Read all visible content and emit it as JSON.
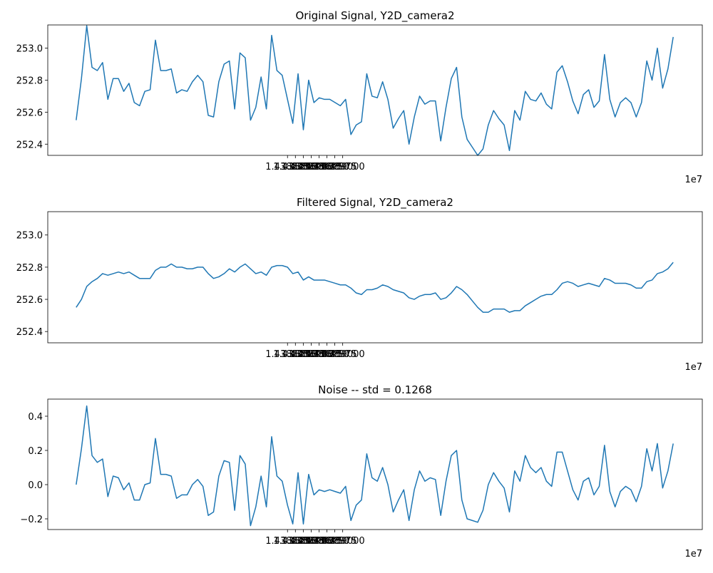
{
  "chart_data": [
    {
      "type": "line",
      "title": "Original Signal, Y2D_camera2",
      "x_offset_label": "1e7",
      "xlim": [
        14388065,
        14390140
      ],
      "xticks": [
        {
          "value": 14388825,
          "label": "1.438825"
        },
        {
          "value": 14388850,
          "label": "1.438850"
        },
        {
          "value": 14388875,
          "label": "1.438875"
        },
        {
          "value": 14388900,
          "label": "1.438900"
        },
        {
          "value": 14388925,
          "label": "1.438925"
        },
        {
          "value": 14388950,
          "label": "1.438950"
        },
        {
          "value": 14388975,
          "label": "1.438975"
        },
        {
          "value": 14389000,
          "label": "1.439000"
        }
      ],
      "ylim": [
        252.33,
        253.145
      ],
      "yticks": [
        252.4,
        252.6,
        252.8,
        {
          "value": 253,
          "label": "253.0"
        }
      ],
      "x": [
        14388155,
        14388171.75,
        14388188.5,
        14388205.25,
        14388222,
        14388238.75,
        14388255.5,
        14388272.25,
        14388289,
        14388305.75,
        14388322.5,
        14388339.25,
        14388356,
        14388372.75,
        14388389.5,
        14388406.25,
        14388423,
        14388439.75,
        14388456.5,
        14388473.25,
        14388490,
        14388506.75,
        14388523.5,
        14388540.25,
        14388557,
        14388573.75,
        14388590.5,
        14388607.25,
        14388624,
        14388640.75,
        14388657.5,
        14388674.25,
        14388691,
        14388707.75,
        14388724.5,
        14388741.25,
        14388758,
        14388774.75,
        14388791.5,
        14388808.25,
        14388825,
        14388841.75,
        14388858.5,
        14388875.25,
        14388892,
        14388908.75,
        14388925.5,
        14388942.25,
        14388959,
        14388975.75,
        14388992.5,
        14389009.25,
        14389026,
        14389042.75,
        14389059.5,
        14389076.25,
        14389093,
        14389109.75,
        14389126.5,
        14389143.25,
        14389160,
        14389176.75,
        14389193.5,
        14389210.25,
        14389227,
        14389243.75,
        14389260.5,
        14389277.25,
        14389294,
        14389310.75,
        14389327.5,
        14389344.25,
        14389361,
        14389377.75,
        14389394.5,
        14389411.25,
        14389428,
        14389444.75,
        14389461.5,
        14389478.25,
        14389495,
        14389511.75,
        14389528.5,
        14389545.25,
        14389562,
        14389578.75,
        14389595.5,
        14389612.25,
        14389629,
        14389645.75,
        14389662.5,
        14389679.25,
        14389696,
        14389712.75,
        14389729.5,
        14389746.25,
        14389763,
        14389779.75,
        14389796.5,
        14389813.25,
        14389830,
        14389846.75,
        14389863.5,
        14389880.25,
        14389897,
        14389913.75,
        14389930.5,
        14389947.25,
        14389964,
        14389980.75,
        14389997.5,
        14390014.25,
        14390031,
        14390047.75
      ],
      "series": [
        {
          "color": "#1f77b4",
          "values": [
            252.55,
            252.81,
            253.14,
            252.88,
            252.86,
            252.91,
            252.68,
            252.81,
            252.81,
            252.73,
            252.78,
            252.66,
            252.64,
            252.73,
            252.74,
            253.05,
            252.86,
            252.86,
            252.87,
            252.72,
            252.74,
            252.73,
            252.79,
            252.83,
            252.79,
            252.58,
            252.57,
            252.79,
            252.9,
            252.92,
            252.62,
            252.97,
            252.94,
            252.55,
            252.63,
            252.82,
            252.62,
            253.08,
            252.86,
            252.83,
            252.68,
            252.53,
            252.84,
            252.49,
            252.8,
            252.66,
            252.69,
            252.68,
            252.68,
            252.66,
            252.64,
            252.68,
            252.46,
            252.52,
            252.54,
            252.84,
            252.7,
            252.69,
            252.79,
            252.68,
            252.5,
            252.56,
            252.61,
            252.4,
            252.57,
            252.7,
            252.65,
            252.67,
            252.67,
            252.42,
            252.63,
            252.81,
            252.88,
            252.57,
            252.43,
            252.38,
            252.33,
            252.37,
            252.52,
            252.61,
            252.56,
            252.52,
            252.36,
            252.61,
            252.55,
            252.73,
            252.68,
            252.67,
            252.72,
            252.65,
            252.62,
            252.85,
            252.89,
            252.79,
            252.67,
            252.59,
            252.71,
            252.74,
            252.63,
            252.67,
            252.96,
            252.68,
            252.57,
            252.66,
            252.69,
            252.66,
            252.57,
            252.66,
            252.92,
            252.8,
            253.0,
            252.75,
            252.87,
            253.07
          ]
        }
      ]
    },
    {
      "type": "line",
      "title": "Filtered Signal, Y2D_camera2",
      "x_offset_label": "1e7",
      "xlim": [
        14388065,
        14390140
      ],
      "xticks": [
        {
          "value": 14388825,
          "label": "1.438825"
        },
        {
          "value": 14388850,
          "label": "1.438850"
        },
        {
          "value": 14388875,
          "label": "1.438875"
        },
        {
          "value": 14388900,
          "label": "1.438900"
        },
        {
          "value": 14388925,
          "label": "1.438925"
        },
        {
          "value": 14388950,
          "label": "1.438950"
        },
        {
          "value": 14388975,
          "label": "1.438975"
        },
        {
          "value": 14389000,
          "label": "1.439000"
        }
      ],
      "ylim": [
        252.33,
        253.145
      ],
      "yticks": [
        252.4,
        252.6,
        252.8,
        {
          "value": 253,
          "label": "253.0"
        }
      ],
      "x": [
        14388155,
        14388171.75,
        14388188.5,
        14388205.25,
        14388222,
        14388238.75,
        14388255.5,
        14388272.25,
        14388289,
        14388305.75,
        14388322.5,
        14388339.25,
        14388356,
        14388372.75,
        14388389.5,
        14388406.25,
        14388423,
        14388439.75,
        14388456.5,
        14388473.25,
        14388490,
        14388506.75,
        14388523.5,
        14388540.25,
        14388557,
        14388573.75,
        14388590.5,
        14388607.25,
        14388624,
        14388640.75,
        14388657.5,
        14388674.25,
        14388691,
        14388707.75,
        14388724.5,
        14388741.25,
        14388758,
        14388774.75,
        14388791.5,
        14388808.25,
        14388825,
        14388841.75,
        14388858.5,
        14388875.25,
        14388892,
        14388908.75,
        14388925.5,
        14388942.25,
        14388959,
        14388975.75,
        14388992.5,
        14389009.25,
        14389026,
        14389042.75,
        14389059.5,
        14389076.25,
        14389093,
        14389109.75,
        14389126.5,
        14389143.25,
        14389160,
        14389176.75,
        14389193.5,
        14389210.25,
        14389227,
        14389243.75,
        14389260.5,
        14389277.25,
        14389294,
        14389310.75,
        14389327.5,
        14389344.25,
        14389361,
        14389377.75,
        14389394.5,
        14389411.25,
        14389428,
        14389444.75,
        14389461.5,
        14389478.25,
        14389495,
        14389511.75,
        14389528.5,
        14389545.25,
        14389562,
        14389578.75,
        14389595.5,
        14389612.25,
        14389629,
        14389645.75,
        14389662.5,
        14389679.25,
        14389696,
        14389712.75,
        14389729.5,
        14389746.25,
        14389763,
        14389779.75,
        14389796.5,
        14389813.25,
        14389830,
        14389846.75,
        14389863.5,
        14389880.25,
        14389897,
        14389913.75,
        14389930.5,
        14389947.25,
        14389964,
        14389980.75,
        14389997.5,
        14390014.25,
        14390031,
        14390047.75
      ],
      "series": [
        {
          "color": "#1f77b4",
          "values": [
            252.55,
            252.6,
            252.68,
            252.71,
            252.73,
            252.76,
            252.75,
            252.76,
            252.77,
            252.76,
            252.77,
            252.75,
            252.73,
            252.73,
            252.73,
            252.78,
            252.8,
            252.8,
            252.82,
            252.8,
            252.8,
            252.79,
            252.79,
            252.8,
            252.8,
            252.76,
            252.73,
            252.74,
            252.76,
            252.79,
            252.77,
            252.8,
            252.82,
            252.79,
            252.76,
            252.77,
            252.75,
            252.8,
            252.81,
            252.81,
            252.8,
            252.76,
            252.77,
            252.72,
            252.74,
            252.72,
            252.72,
            252.72,
            252.71,
            252.7,
            252.69,
            252.69,
            252.67,
            252.64,
            252.63,
            252.66,
            252.66,
            252.67,
            252.69,
            252.68,
            252.66,
            252.65,
            252.64,
            252.61,
            252.6,
            252.62,
            252.63,
            252.63,
            252.64,
            252.6,
            252.61,
            252.64,
            252.68,
            252.66,
            252.63,
            252.59,
            252.55,
            252.52,
            252.52,
            252.54,
            252.54,
            252.54,
            252.52,
            252.53,
            252.53,
            252.56,
            252.58,
            252.6,
            252.62,
            252.63,
            252.63,
            252.66,
            252.7,
            252.71,
            252.7,
            252.68,
            252.69,
            252.7,
            252.69,
            252.68,
            252.73,
            252.72,
            252.7,
            252.7,
            252.7,
            252.69,
            252.67,
            252.67,
            252.71,
            252.72,
            252.76,
            252.77,
            252.79,
            252.83
          ]
        }
      ]
    },
    {
      "type": "line",
      "title": "Noise -- std = 0.1268",
      "x_offset_label": "1e7",
      "xlim": [
        14388065,
        14390140
      ],
      "xticks": [
        {
          "value": 14388825,
          "label": "1.438825"
        },
        {
          "value": 14388850,
          "label": "1.438850"
        },
        {
          "value": 14388875,
          "label": "1.438875"
        },
        {
          "value": 14388900,
          "label": "1.438900"
        },
        {
          "value": 14388925,
          "label": "1.438925"
        },
        {
          "value": 14388950,
          "label": "1.438950"
        },
        {
          "value": 14388975,
          "label": "1.438975"
        },
        {
          "value": 14389000,
          "label": "1.439000"
        }
      ],
      "ylim": [
        -0.2625,
        0.5
      ],
      "yticks": [
        {
          "value": -0.2,
          "label": "−0.2"
        },
        {
          "value": 0,
          "label": "0.0"
        },
        0.2,
        0.4
      ],
      "x": [
        14388155,
        14388171.75,
        14388188.5,
        14388205.25,
        14388222,
        14388238.75,
        14388255.5,
        14388272.25,
        14388289,
        14388305.75,
        14388322.5,
        14388339.25,
        14388356,
        14388372.75,
        14388389.5,
        14388406.25,
        14388423,
        14388439.75,
        14388456.5,
        14388473.25,
        14388490,
        14388506.75,
        14388523.5,
        14388540.25,
        14388557,
        14388573.75,
        14388590.5,
        14388607.25,
        14388624,
        14388640.75,
        14388657.5,
        14388674.25,
        14388691,
        14388707.75,
        14388724.5,
        14388741.25,
        14388758,
        14388774.75,
        14388791.5,
        14388808.25,
        14388825,
        14388841.75,
        14388858.5,
        14388875.25,
        14388892,
        14388908.75,
        14388925.5,
        14388942.25,
        14388959,
        14388975.75,
        14388992.5,
        14389009.25,
        14389026,
        14389042.75,
        14389059.5,
        14389076.25,
        14389093,
        14389109.75,
        14389126.5,
        14389143.25,
        14389160,
        14389176.75,
        14389193.5,
        14389210.25,
        14389227,
        14389243.75,
        14389260.5,
        14389277.25,
        14389294,
        14389310.75,
        14389327.5,
        14389344.25,
        14389361,
        14389377.75,
        14389394.5,
        14389411.25,
        14389428,
        14389444.75,
        14389461.5,
        14389478.25,
        14389495,
        14389511.75,
        14389528.5,
        14389545.25,
        14389562,
        14389578.75,
        14389595.5,
        14389612.25,
        14389629,
        14389645.75,
        14389662.5,
        14389679.25,
        14389696,
        14389712.75,
        14389729.5,
        14389746.25,
        14389763,
        14389779.75,
        14389796.5,
        14389813.25,
        14389830,
        14389846.75,
        14389863.5,
        14389880.25,
        14389897,
        14389913.75,
        14389930.5,
        14389947.25,
        14389964,
        14389980.75,
        14389997.5,
        14390014.25,
        14390031,
        14390047.75
      ],
      "series": [
        {
          "color": "#1f77b4",
          "values": [
            0.0,
            0.21,
            0.46,
            0.17,
            0.13,
            0.15,
            -0.07,
            0.05,
            0.04,
            -0.03,
            0.01,
            -0.09,
            -0.09,
            0.0,
            0.01,
            0.27,
            0.06,
            0.06,
            0.05,
            -0.08,
            -0.06,
            -0.06,
            0.0,
            0.03,
            -0.01,
            -0.18,
            -0.16,
            0.05,
            0.14,
            0.13,
            -0.15,
            0.17,
            0.12,
            -0.24,
            -0.13,
            0.05,
            -0.13,
            0.28,
            0.05,
            0.02,
            -0.12,
            -0.23,
            0.07,
            -0.23,
            0.06,
            -0.06,
            -0.03,
            -0.04,
            -0.03,
            -0.04,
            -0.05,
            -0.01,
            -0.21,
            -0.12,
            -0.09,
            0.18,
            0.04,
            0.02,
            0.1,
            0.0,
            -0.16,
            -0.09,
            -0.03,
            -0.21,
            -0.03,
            0.08,
            0.02,
            0.04,
            0.03,
            -0.18,
            0.02,
            0.17,
            0.2,
            -0.09,
            -0.2,
            -0.21,
            -0.22,
            -0.15,
            0.0,
            0.07,
            0.02,
            -0.02,
            -0.16,
            0.08,
            0.02,
            0.17,
            0.1,
            0.07,
            0.1,
            0.02,
            -0.01,
            0.19,
            0.19,
            0.08,
            -0.03,
            -0.09,
            0.02,
            0.04,
            -0.06,
            -0.01,
            0.23,
            -0.04,
            -0.13,
            -0.04,
            -0.01,
            -0.03,
            -0.1,
            -0.01,
            0.21,
            0.08,
            0.24,
            -0.02,
            0.08,
            0.24
          ]
        }
      ]
    }
  ]
}
